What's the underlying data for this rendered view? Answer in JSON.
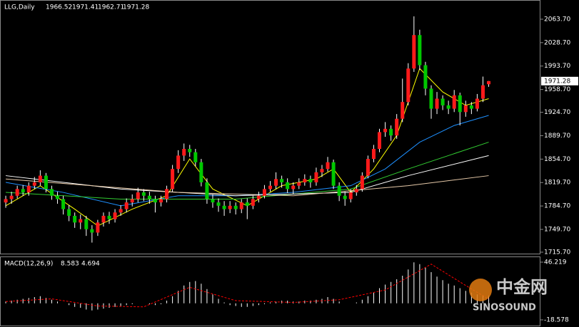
{
  "chart_data": [
    {
      "type": "candlestick",
      "title": "LLG,Daily",
      "xlim": [
        -1,
        93
      ],
      "ylim": [
        1714.6,
        2089.2
      ],
      "yticks": [
        {
          "value": 2063.7,
          "label": "2063.70"
        },
        {
          "value": 2028.7,
          "label": "2028.70"
        },
        {
          "value": 1993.7,
          "label": "1993.70"
        },
        {
          "value": 1958.7,
          "label": "1958.70"
        },
        {
          "value": 1924.7,
          "label": "1924.70"
        },
        {
          "value": 1889.7,
          "label": "1889.70"
        },
        {
          "value": 1854.7,
          "label": "1854.70"
        },
        {
          "value": 1819.7,
          "label": "1819.70"
        },
        {
          "value": 1784.7,
          "label": "1784.70"
        },
        {
          "value": 1749.7,
          "label": "1749.70"
        },
        {
          "value": 1715.7,
          "label": "1715.70"
        }
      ],
      "up_color": "#ff1a1a",
      "down_color": "#00c800",
      "wick_color": "#ffffff",
      "open": [
        1790,
        1795,
        1800,
        1810,
        1805,
        1815,
        1820,
        1830,
        1810,
        1800,
        1795,
        1780,
        1770,
        1760,
        1765,
        1750,
        1745,
        1760,
        1770,
        1765,
        1775,
        1780,
        1790,
        1795,
        1805,
        1800,
        1795,
        1790,
        1795,
        1810,
        1840,
        1860,
        1870,
        1865,
        1850,
        1820,
        1795,
        1790,
        1785,
        1780,
        1785,
        1780,
        1790,
        1785,
        1795,
        1800,
        1810,
        1815,
        1825,
        1820,
        1810,
        1815,
        1820,
        1825,
        1820,
        1835,
        1840,
        1850,
        1815,
        1800,
        1795,
        1805,
        1810,
        1830,
        1855,
        1870,
        1895,
        1900,
        1890,
        1915,
        1940,
        1990,
        2040,
        1995,
        1960,
        1930,
        1945,
        1935,
        1930,
        1950,
        1925,
        1935,
        1930,
        1945,
        1966.52
      ],
      "high": [
        1800,
        1806,
        1815,
        1816,
        1820,
        1828,
        1838,
        1834,
        1815,
        1806,
        1800,
        1786,
        1775,
        1772,
        1770,
        1756,
        1764,
        1775,
        1776,
        1780,
        1786,
        1796,
        1802,
        1812,
        1810,
        1806,
        1800,
        1800,
        1815,
        1846,
        1868,
        1878,
        1876,
        1870,
        1855,
        1826,
        1802,
        1796,
        1792,
        1792,
        1790,
        1795,
        1796,
        1800,
        1806,
        1816,
        1822,
        1835,
        1830,
        1826,
        1820,
        1826,
        1832,
        1830,
        1842,
        1846,
        1858,
        1854,
        1820,
        1806,
        1810,
        1816,
        1835,
        1860,
        1876,
        1900,
        1910,
        1905,
        1922,
        1975,
        1998,
        2068,
        2048,
        2000,
        1965,
        1955,
        1950,
        1942,
        1958,
        1954,
        1942,
        1940,
        1952,
        1978,
        1971.41
      ],
      "low": [
        1782,
        1788,
        1796,
        1800,
        1800,
        1810,
        1815,
        1805,
        1794,
        1788,
        1772,
        1762,
        1752,
        1750,
        1740,
        1730,
        1740,
        1754,
        1758,
        1760,
        1770,
        1775,
        1784,
        1790,
        1792,
        1788,
        1775,
        1784,
        1790,
        1806,
        1834,
        1852,
        1858,
        1844,
        1814,
        1788,
        1782,
        1776,
        1770,
        1774,
        1772,
        1774,
        1765,
        1780,
        1790,
        1796,
        1806,
        1810,
        1812,
        1804,
        1802,
        1810,
        1815,
        1812,
        1815,
        1828,
        1836,
        1810,
        1792,
        1785,
        1790,
        1800,
        1806,
        1826,
        1850,
        1865,
        1888,
        1882,
        1885,
        1910,
        1935,
        1985,
        1988,
        1950,
        1915,
        1922,
        1928,
        1922,
        1925,
        1905,
        1918,
        1922,
        1926,
        1940,
        1962.71
      ],
      "close": [
        1795,
        1800,
        1810,
        1805,
        1815,
        1820,
        1830,
        1810,
        1800,
        1795,
        1780,
        1770,
        1760,
        1765,
        1750,
        1745,
        1760,
        1770,
        1765,
        1775,
        1780,
        1790,
        1795,
        1805,
        1800,
        1795,
        1790,
        1795,
        1810,
        1840,
        1860,
        1870,
        1865,
        1850,
        1820,
        1795,
        1790,
        1785,
        1780,
        1785,
        1780,
        1790,
        1785,
        1795,
        1800,
        1810,
        1815,
        1825,
        1820,
        1810,
        1815,
        1820,
        1825,
        1820,
        1835,
        1840,
        1850,
        1815,
        1800,
        1795,
        1805,
        1810,
        1830,
        1855,
        1870,
        1895,
        1900,
        1890,
        1915,
        1940,
        1990,
        2040,
        1995,
        1960,
        1930,
        1945,
        1935,
        1930,
        1950,
        1925,
        1935,
        1930,
        1945,
        1965,
        1971.28
      ],
      "series": [
        {
          "color": "#ffff00",
          "x": [
            0,
            6,
            12,
            16,
            22,
            28,
            32,
            36,
            42,
            48,
            54,
            57,
            60,
            64,
            68,
            72,
            76,
            80,
            84
          ],
          "values": [
            1785,
            1815,
            1780,
            1755,
            1780,
            1800,
            1855,
            1810,
            1785,
            1815,
            1825,
            1840,
            1805,
            1840,
            1890,
            1990,
            1955,
            1935,
            1945
          ]
        },
        {
          "color": "#1e90ff",
          "x": [
            0,
            10,
            20,
            30,
            40,
            50,
            60,
            66,
            72,
            78,
            84
          ],
          "values": [
            1820,
            1805,
            1785,
            1800,
            1800,
            1805,
            1815,
            1840,
            1880,
            1905,
            1920
          ]
        },
        {
          "color": "#32cd32",
          "x": [
            0,
            20,
            40,
            60,
            70,
            84
          ],
          "values": [
            1805,
            1795,
            1795,
            1810,
            1840,
            1880
          ]
        },
        {
          "color": "#ffffff",
          "x": [
            0,
            20,
            40,
            60,
            70,
            84
          ],
          "values": [
            1830,
            1810,
            1800,
            1805,
            1830,
            1860
          ]
        },
        {
          "color": "#e6c9a8",
          "x": [
            0,
            30,
            50,
            70,
            84
          ],
          "values": [
            1825,
            1805,
            1800,
            1815,
            1830
          ]
        }
      ]
    },
    {
      "type": "macd",
      "title": "MACD(12,26,9)",
      "xlim": [
        -1,
        93
      ],
      "ylim": [
        -25,
        51
      ],
      "yticks": [
        {
          "value": 46.219,
          "label": "46.219"
        },
        {
          "value": -18.578,
          "label": "-18.578"
        }
      ],
      "histogram_color": "#ffffff",
      "signal_color": "#ff0000",
      "values": [
        2,
        3,
        4,
        5,
        6,
        7,
        8,
        6,
        4,
        2,
        0,
        -2,
        -4,
        -5,
        -7,
        -8,
        -7,
        -6,
        -5,
        -4,
        -3,
        -2,
        -1,
        0,
        0,
        -1,
        -2,
        -1,
        3,
        8,
        14,
        20,
        24,
        25,
        22,
        16,
        10,
        5,
        1,
        -2,
        -3,
        -4,
        -4,
        -3,
        -2,
        -1,
        1,
        2,
        3,
        3,
        2,
        2,
        3,
        3,
        4,
        5,
        7,
        5,
        2,
        0,
        0,
        1,
        4,
        8,
        12,
        17,
        21,
        24,
        27,
        31,
        38,
        46,
        44,
        40,
        35,
        30,
        26,
        22,
        20,
        17,
        14,
        12,
        10,
        9,
        8.583
      ],
      "signal": {
        "x": [
          0,
          8,
          16,
          24,
          32,
          40,
          50,
          58,
          66,
          74,
          80,
          84
        ],
        "values": [
          2,
          5,
          -3,
          -4,
          18,
          3,
          1,
          4,
          15,
          44,
          20,
          4.694
        ]
      }
    }
  ],
  "watermark": {
    "logo": "中金网",
    "brand": "SINOSOUND"
  }
}
